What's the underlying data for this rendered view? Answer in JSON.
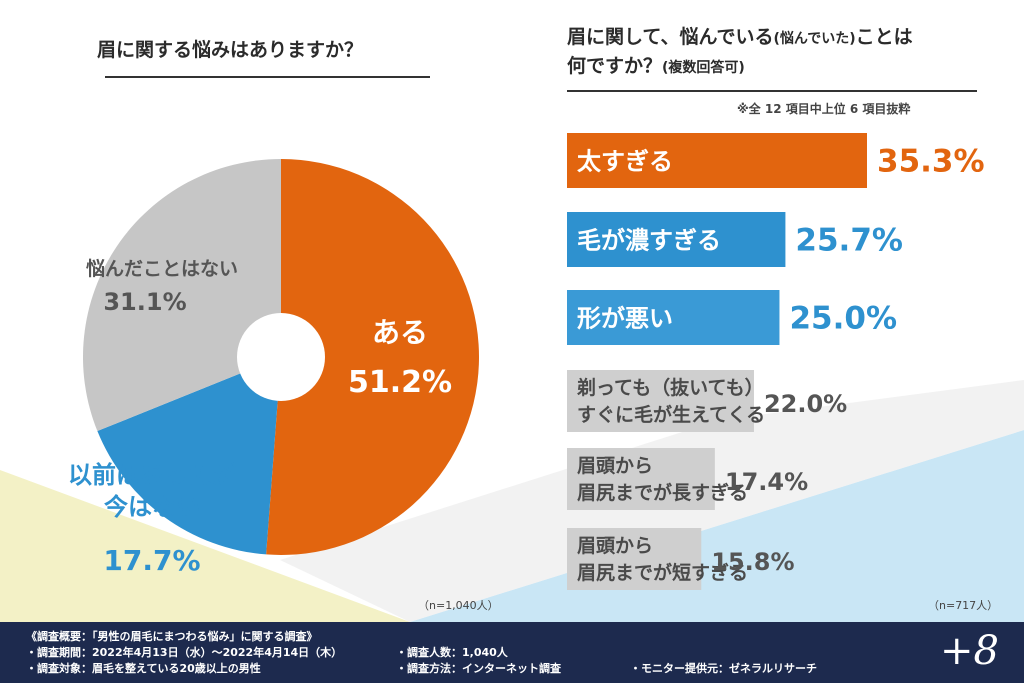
{
  "left_title": "眉に関する悩みはありますか？",
  "right_title": {
    "line1_main": "眉に関して、悩んでいる",
    "line1_paren": "(悩んでいた)",
    "line1_end": "ことは",
    "line2_main": "何ですか？",
    "line2_paren": "(複数回答可)"
  },
  "note_top": "※全 12 項目中上位 6 項目抜粋",
  "n_left": "（n=1,040人）",
  "n_right": "（n=717人）",
  "colors": {
    "orange": "#e2650f",
    "blue": "#2e91cf",
    "blue_light": "#3a9ad6",
    "gray": "#c8c8c8",
    "navy": "#1d2a4e"
  },
  "chart_data": [
    {
      "type": "pie",
      "donut": true,
      "slices": [
        {
          "label": "ある",
          "value": 51.2,
          "value_text": "51.2%",
          "color": "#e2650f"
        },
        {
          "label": "以前はあったが今はない",
          "label_lines": [
            "以前はあったが",
            "今はない"
          ],
          "value": 17.7,
          "value_text": "17.7%",
          "color": "#2e91cf"
        },
        {
          "label": "悩んだことはない",
          "value": 31.1,
          "value_text": "31.1%",
          "color": "#c6c6c6"
        }
      ]
    },
    {
      "type": "bar",
      "orientation": "horizontal",
      "xlim": [
        0,
        35.3
      ],
      "categories": [
        {
          "label": "太すぎる",
          "lines": [
            "太すぎる"
          ],
          "value": 35.3,
          "value_text": "35.3%",
          "color": "#e2650f",
          "text_color": "#ffffff",
          "value_color": "#e2650f"
        },
        {
          "label": "毛が濃すぎる",
          "lines": [
            "毛が濃すぎる"
          ],
          "value": 25.7,
          "value_text": "25.7%",
          "color": "#2e91cf",
          "text_color": "#ffffff",
          "value_color": "#2e91cf"
        },
        {
          "label": "形が悪い",
          "lines": [
            "形が悪い"
          ],
          "value": 25.0,
          "value_text": "25.0%",
          "color": "#3a9ad6",
          "text_color": "#ffffff",
          "value_color": "#2e91cf"
        },
        {
          "label": "剃っても（抜いても）すぐに毛が生えてくる",
          "lines": [
            "剃っても（抜いても）",
            "すぐに毛が生えてくる"
          ],
          "value": 22.0,
          "value_text": "22.0%",
          "color": "#cfcfcf",
          "text_color": "#4a4a4a",
          "value_color": "#555555"
        },
        {
          "label": "眉頭から眉尻までが長すぎる",
          "lines": [
            "眉頭から",
            "眉尻までが長すぎる"
          ],
          "value": 17.4,
          "value_text": "17.4%",
          "color": "#cfcfcf",
          "text_color": "#4a4a4a",
          "value_color": "#555555"
        },
        {
          "label": "眉頭から眉尻までが短すぎる",
          "lines": [
            "眉頭から",
            "眉尻までが短すぎる"
          ],
          "value": 15.8,
          "value_text": "15.8%",
          "color": "#cfcfcf",
          "text_color": "#4a4a4a",
          "value_color": "#555555"
        }
      ]
    }
  ],
  "footer": {
    "survey_title": "《調査概要：「男性の眉毛にまつわる悩み」に関する調査》",
    "period": "・調査期間：2022年4月13日（水）～2022年4月14日（木）",
    "target": "・調査対象：眉毛を整えている20歳以上の男性",
    "count": "・調査人数：1,040人",
    "method": "・調査方法：インターネット調査",
    "provider": "・モニター提供元：ゼネラルリサーチ",
    "logo": "+8"
  }
}
